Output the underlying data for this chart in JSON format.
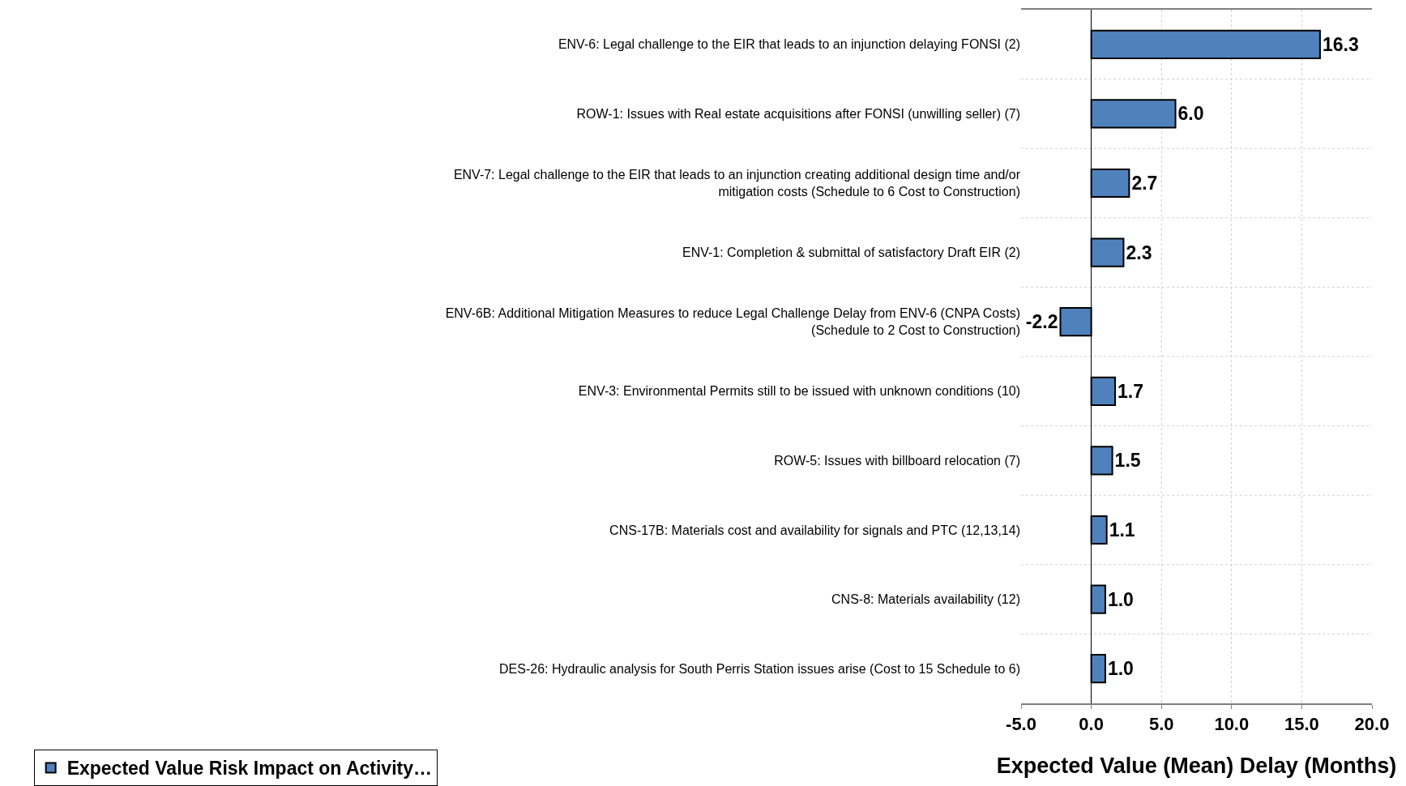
{
  "chart_data": {
    "type": "bar",
    "orientation": "horizontal",
    "xlabel": "Expected Value (Mean) Delay (Months)",
    "categories": [
      "ENV-6: Legal challenge to the EIR that leads to an injunction delaying FONSI (2)",
      "ROW-1: Issues with Real estate acquisitions after FONSI (unwilling seller) (7)",
      "ENV-7: Legal challenge to the EIR that leads to an injunction creating additional design time and/or mitigation costs (Schedule to 6 Cost to Construction)",
      "ENV-1: Completion & submittal of satisfactory Draft EIR (2)",
      "ENV-6B: Additional Mitigation Measures to reduce Legal Challenge Delay from ENV-6 (CNPA Costs) (Schedule to 2 Cost to Construction)",
      "ENV-3: Environmental Permits still to be issued with unknown conditions (10)",
      "ROW-5: Issues with billboard relocation (7)",
      "CNS-17B: Materials cost and availability for signals and PTC (12,13,14)",
      "CNS-8: Materials availability (12)",
      "DES-26: Hydraulic analysis for South Perris Station issues arise (Cost to 15 Schedule to 6)"
    ],
    "series": [
      {
        "name": "Expected Value Risk Impact on Activity…",
        "color": "#4f81bd",
        "values": [
          16.3,
          6.0,
          2.7,
          2.3,
          -2.2,
          1.7,
          1.5,
          1.1,
          1.0,
          1.0
        ],
        "value_labels": [
          "16.3",
          "6.0",
          "2.7",
          "2.3",
          "-2.2",
          "1.7",
          "1.5",
          "1.1",
          "1.0",
          "1.0"
        ]
      }
    ],
    "xlim": [
      -5,
      20
    ],
    "xticks": [
      {
        "value": -5,
        "label": "-5.0"
      },
      {
        "value": 0,
        "label": "0.0"
      },
      {
        "value": 5,
        "label": "5.0"
      },
      {
        "value": 10,
        "label": "10.0"
      },
      {
        "value": 15,
        "label": "15.0"
      },
      {
        "value": 20,
        "label": "20.0"
      }
    ],
    "grid": true,
    "legend": "bottom left"
  }
}
